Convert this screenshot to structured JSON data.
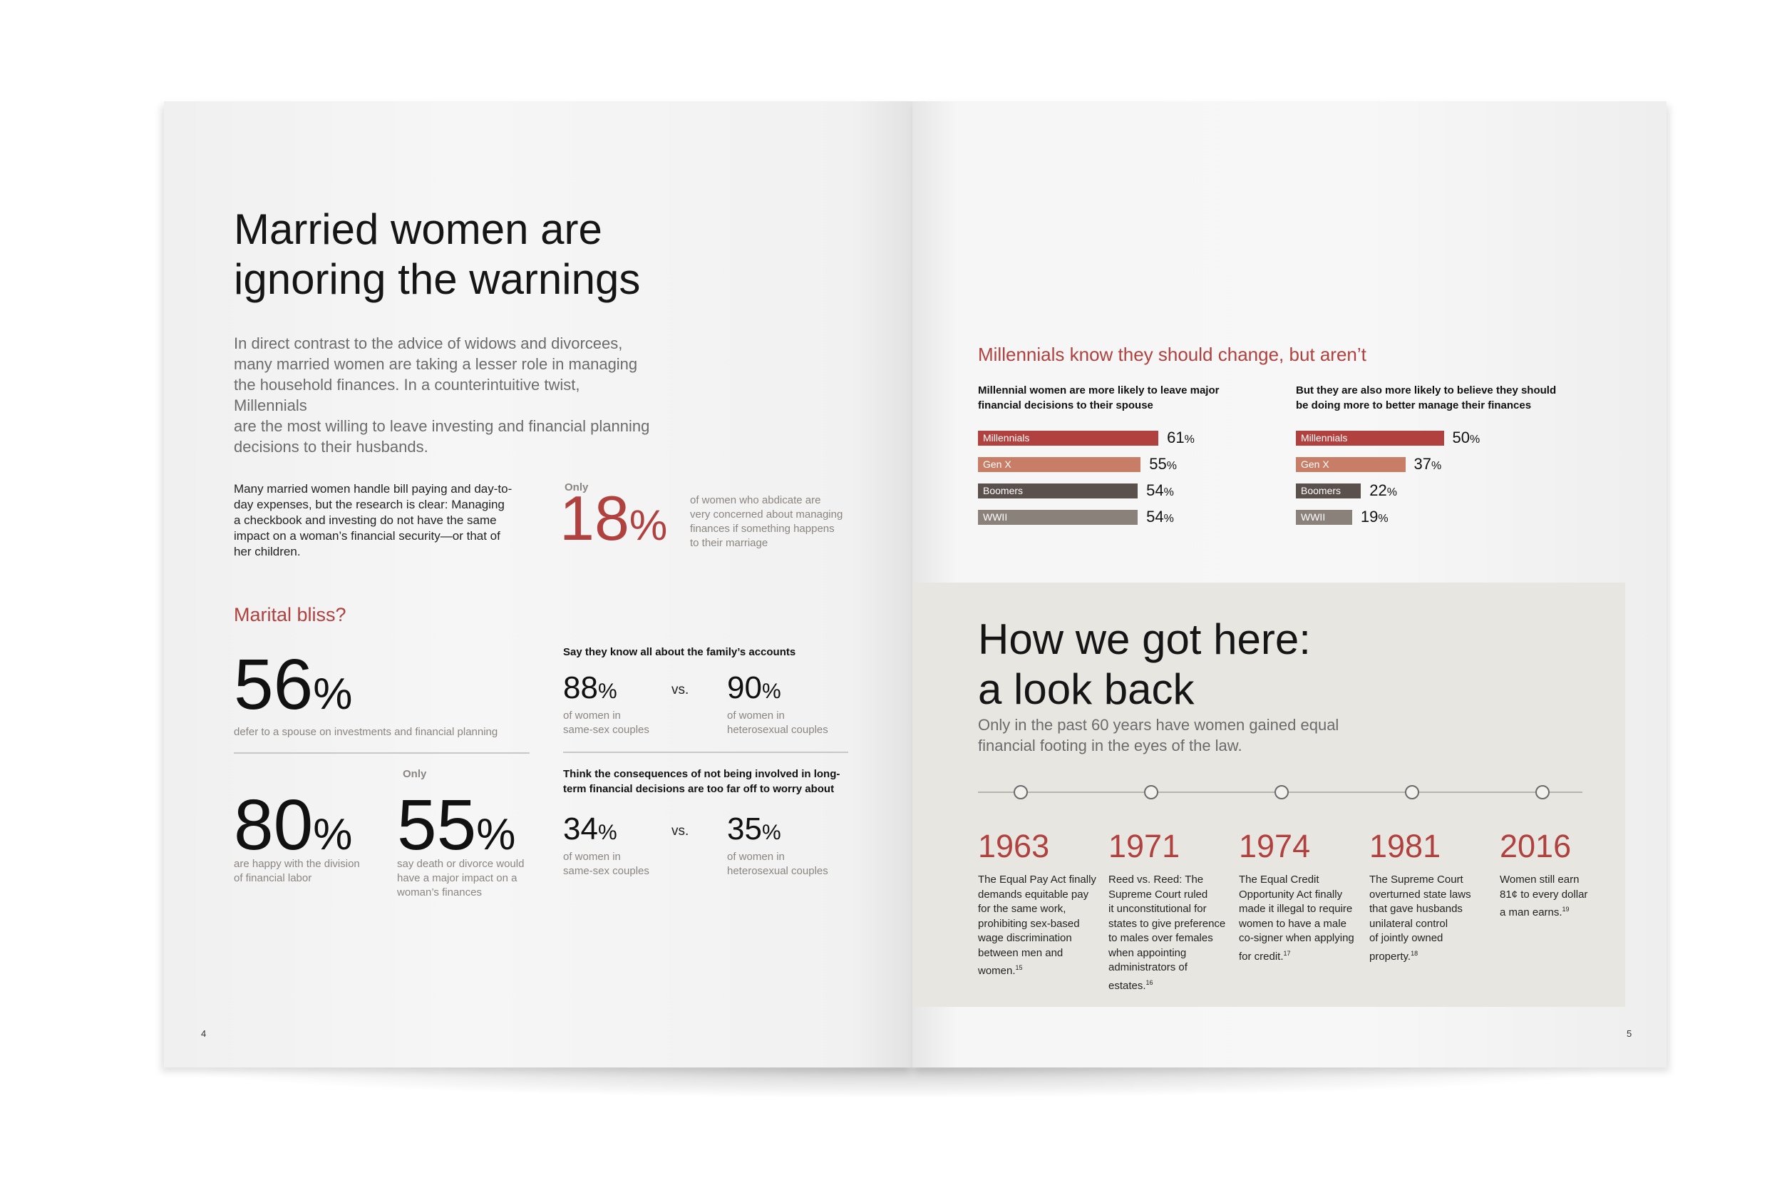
{
  "left_page": {
    "title": [
      "Married women are",
      "ignoring the warnings"
    ],
    "intro": [
      "In direct contrast to the advice of widows and divorcees,",
      "many married women are taking a lesser role in managing",
      "the household finances. In a counterintuitive twist, Millennials",
      "are the most willing to leave investing and financial planning",
      "decisions to their husbands."
    ],
    "paragraph": [
      "Many married women handle bill paying and day-to-",
      "day expenses, but the research is clear: Managing",
      "a checkbook and investing do not have the same",
      "impact on a woman’s financial security—or that of",
      "her children."
    ],
    "callout": {
      "only": "Only",
      "value": "18",
      "pct": "%",
      "desc": [
        "of women who abdicate are",
        "very concerned about managing",
        "finances if something happens",
        "to their marriage"
      ]
    },
    "section_heading": "Marital bliss?",
    "stat56": {
      "value": "56",
      "pct": "%",
      "desc": "defer to a spouse on investments and financial planning"
    },
    "stat80": {
      "value": "80",
      "pct": "%",
      "desc": [
        "are happy with the division",
        "of financial labor"
      ]
    },
    "stat55": {
      "only": "Only",
      "value": "55",
      "pct": "%",
      "desc": [
        "say death or divorce would",
        "have a major impact on a",
        "woman’s finances"
      ]
    },
    "accounts": {
      "heading": "Say they know all about the family’s accounts",
      "a": {
        "value": "88",
        "pct": "%",
        "desc": [
          "of women in",
          "same-sex couples"
        ]
      },
      "vs": "vs.",
      "b": {
        "value": "90",
        "pct": "%",
        "desc": [
          "of women in",
          "heterosexual couples"
        ]
      }
    },
    "consequences": {
      "heading": [
        "Think the consequences of not being involved in long-",
        "term financial decisions are too far off to worry about"
      ],
      "a": {
        "value": "34",
        "pct": "%",
        "desc": [
          "of women in",
          "same-sex couples"
        ]
      },
      "vs": "vs.",
      "b": {
        "value": "35",
        "pct": "%",
        "desc": [
          "of women in",
          "heterosexual couples"
        ]
      }
    },
    "page_number": "4"
  },
  "right_page": {
    "chart_heading": "Millennials know they should change, but aren’t",
    "page_number": "5",
    "colors": {
      "Millennials": "#b0413e",
      "Gen X": "#c87e66",
      "Boomers": "#5a504c",
      "WWII": "#8a817b"
    },
    "timeline": {
      "title": [
        "How we got here:",
        "a look back"
      ],
      "subtitle": [
        "Only in the past 60 years have women gained equal",
        "financial footing in the eyes of the law."
      ],
      "events": [
        {
          "year": "1963",
          "desc": [
            "The Equal Pay Act finally",
            "demands equitable pay",
            "for the same work,",
            "prohibiting sex-based",
            "wage discrimination",
            "between men and",
            "women."
          ],
          "note": "15"
        },
        {
          "year": "1971",
          "desc": [
            "Reed vs. Reed: The",
            "Supreme Court ruled",
            "it unconstitutional for",
            "states to give preference",
            "to males over females",
            "when appointing",
            "administrators of",
            "estates."
          ],
          "note": "16"
        },
        {
          "year": "1974",
          "desc": [
            "The Equal Credit",
            "Opportunity Act finally",
            "made it illegal to require",
            "women to have a male",
            "co-signer when applying",
            "for credit."
          ],
          "note": "17"
        },
        {
          "year": "1981",
          "desc": [
            "The Supreme Court",
            "overturned state laws",
            "that gave husbands",
            "unilateral control",
            "of jointly owned",
            "property."
          ],
          "note": "18"
        },
        {
          "year": "2016",
          "desc": [
            "Women still earn",
            "81¢ to every dollar",
            "a man earns."
          ],
          "note": "19"
        }
      ]
    }
  },
  "chart_data": [
    {
      "type": "bar",
      "title": [
        "Millennial women are more likely to leave major",
        "financial decisions to their spouse"
      ],
      "categories": [
        "Millennials",
        "Gen X",
        "Boomers",
        "WWII"
      ],
      "values": [
        61,
        55,
        54,
        54
      ],
      "unit": "%"
    },
    {
      "type": "bar",
      "title": [
        "But they are also more likely to believe they should",
        "be doing more to better manage their finances"
      ],
      "categories": [
        "Millennials",
        "Gen X",
        "Boomers",
        "WWII"
      ],
      "values": [
        50,
        37,
        22,
        19
      ],
      "unit": "%"
    }
  ]
}
